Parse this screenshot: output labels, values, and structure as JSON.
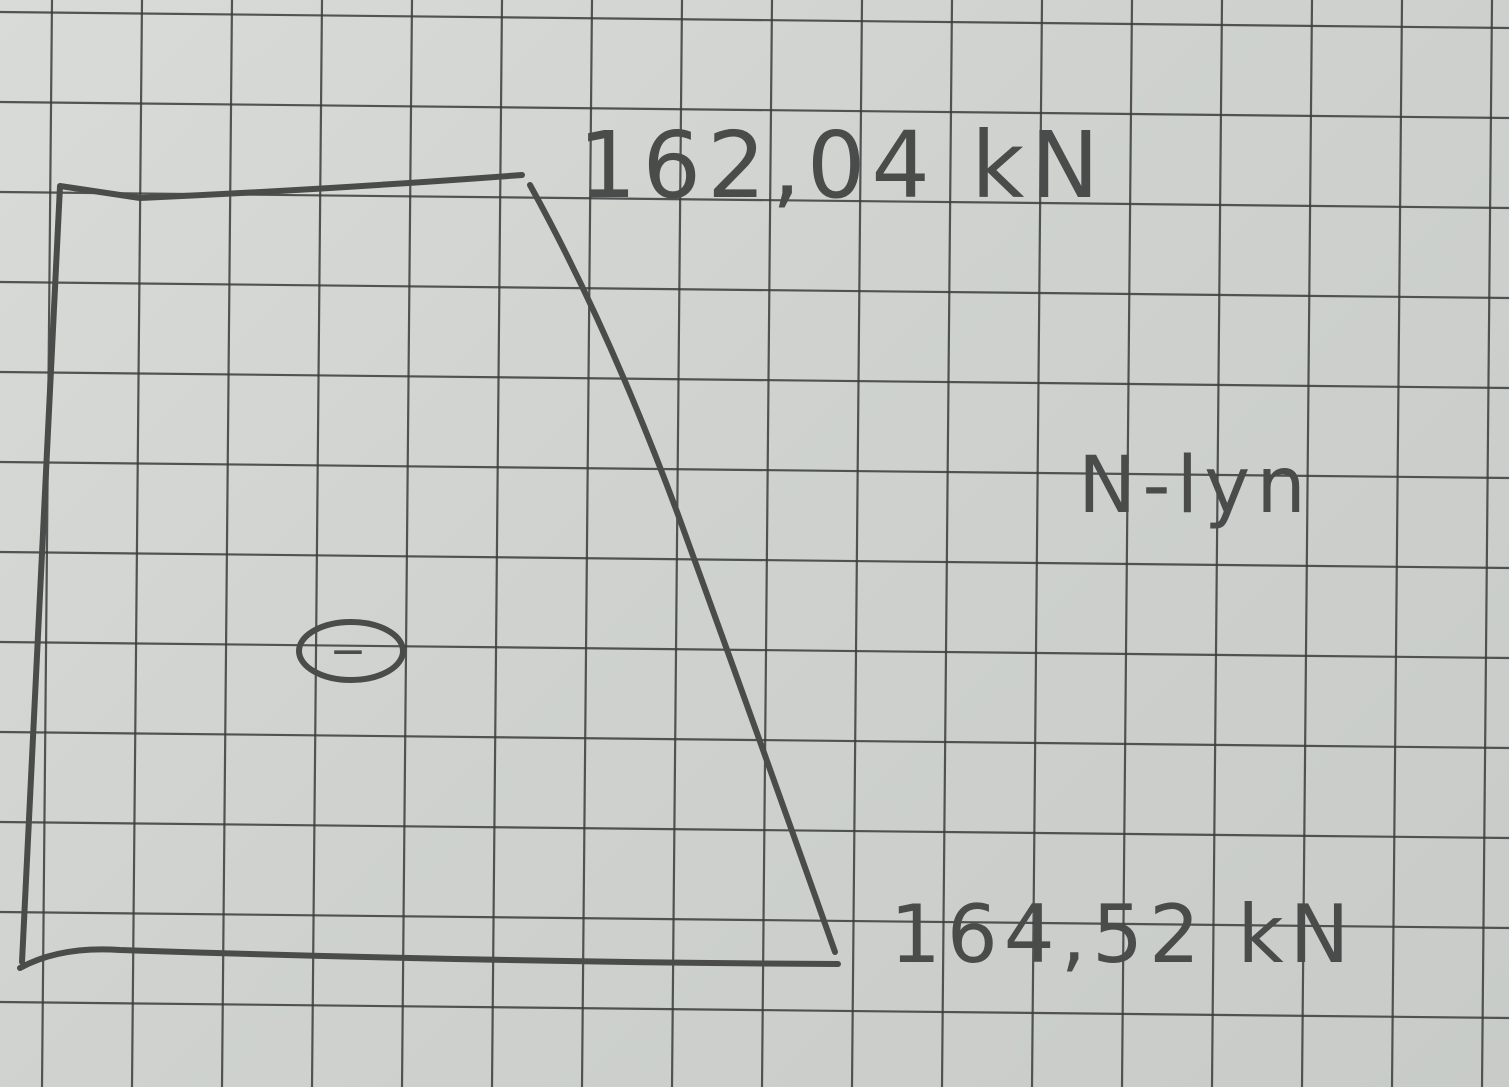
{
  "diagram": {
    "title": "N-lyn",
    "top_value": "162,04 kN",
    "bottom_value": "164,52 kN",
    "sign": "−"
  },
  "colors": {
    "paper": "#d4d6d3",
    "grid": "#3a3d3c",
    "pencil": "#4a4c4b"
  }
}
